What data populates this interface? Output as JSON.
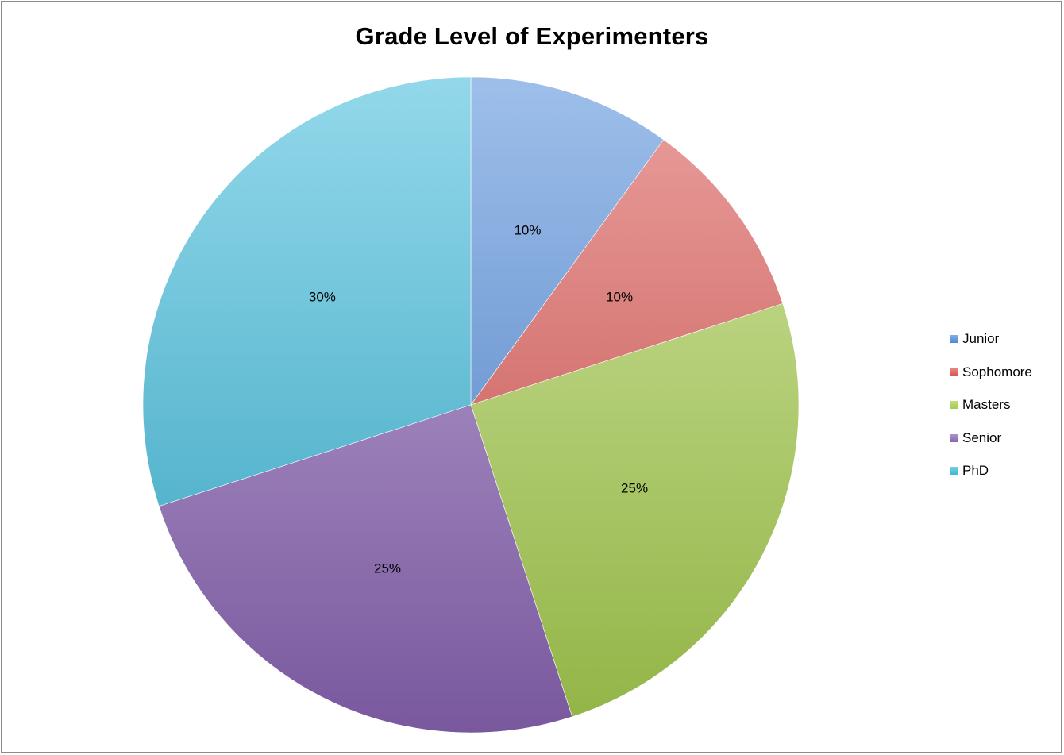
{
  "chart_data": {
    "type": "pie",
    "title": "Grade Level of Experimenters",
    "categories": [
      "Junior",
      "Sophomore",
      "Masters",
      "Senior",
      "PhD"
    ],
    "values": [
      10,
      10,
      25,
      25,
      30
    ],
    "value_labels": [
      "10%",
      "10%",
      "25%",
      "25%",
      "30%"
    ],
    "colors": [
      "#4f8ad8",
      "#d9534f",
      "#a6cc4e",
      "#8a64b3",
      "#3bb8d8"
    ],
    "start_angle": "12 o'clock",
    "direction": "clockwise",
    "legend_position": "right"
  }
}
